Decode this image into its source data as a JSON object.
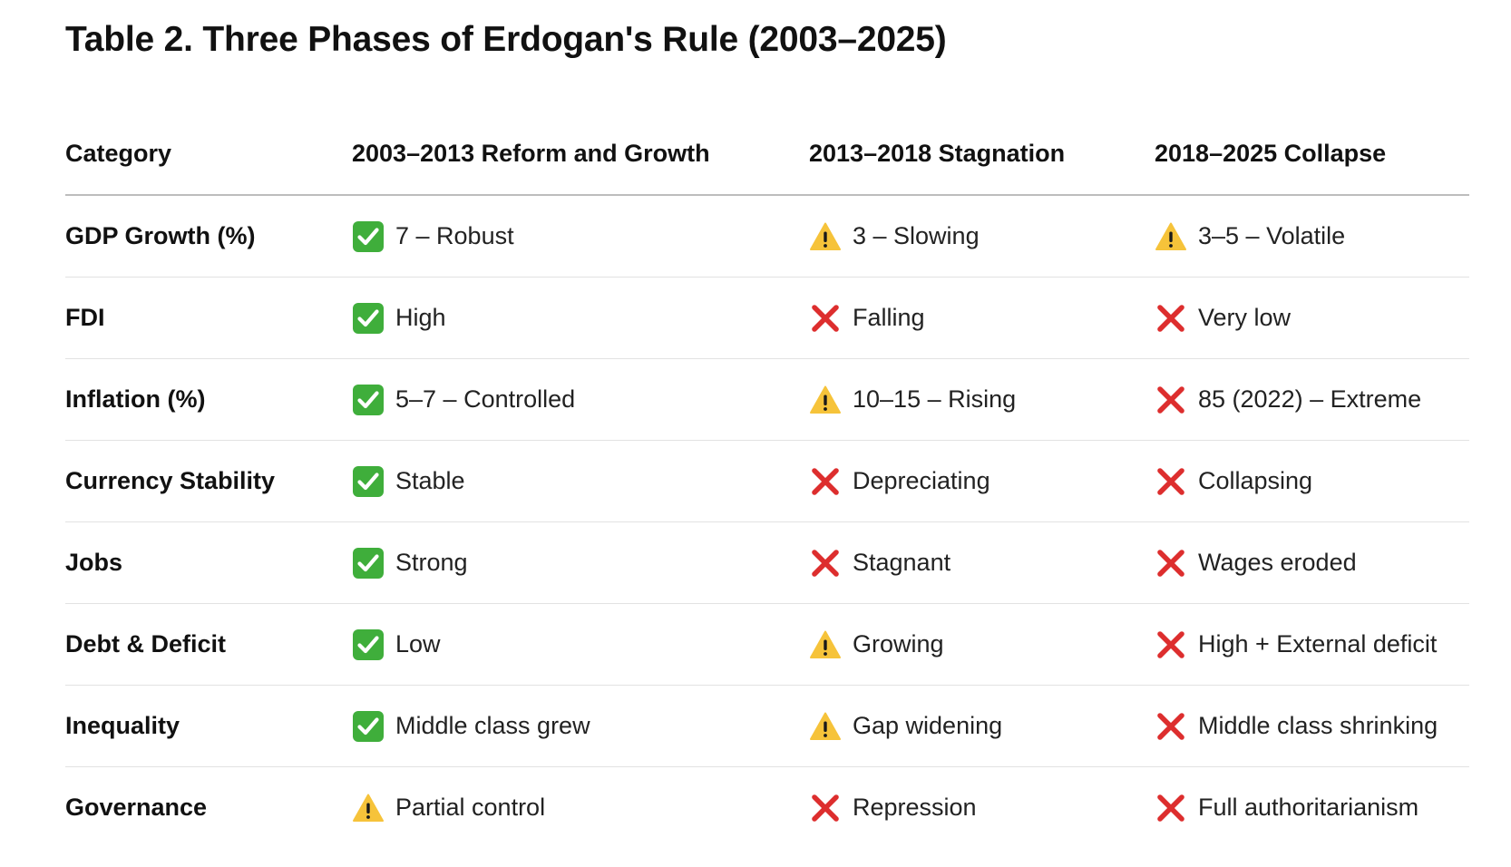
{
  "title": "Table 2. Three Phases of Erdogan's Rule (2003–2025)",
  "columns": [
    "Category",
    "2003–2013 Reform and Growth",
    "2013–2018 Stagnation",
    "2018–2025 Collapse"
  ],
  "icon_names": {
    "check": "check-mark-icon",
    "warn": "warning-icon",
    "cross": "cross-mark-icon"
  },
  "icon_colors": {
    "check_bg": "#3fae3b",
    "warn_fill": "#f6c33a",
    "cross": "#dd2e2e"
  },
  "rows": [
    {
      "label": "GDP Growth (%)",
      "cells": [
        {
          "icon": "check",
          "text": "7 – Robust"
        },
        {
          "icon": "warn",
          "text": "3 – Slowing"
        },
        {
          "icon": "warn",
          "text": "3–5 – Volatile"
        }
      ]
    },
    {
      "label": "FDI",
      "cells": [
        {
          "icon": "check",
          "text": "High"
        },
        {
          "icon": "cross",
          "text": "Falling"
        },
        {
          "icon": "cross",
          "text": "Very low"
        }
      ]
    },
    {
      "label": "Inflation (%)",
      "cells": [
        {
          "icon": "check",
          "text": "5–7 – Controlled"
        },
        {
          "icon": "warn",
          "text": "10–15 – Rising"
        },
        {
          "icon": "cross",
          "text": "85 (2022) – Extreme"
        }
      ]
    },
    {
      "label": "Currency Stability",
      "cells": [
        {
          "icon": "check",
          "text": "Stable"
        },
        {
          "icon": "cross",
          "text": "Depreciating"
        },
        {
          "icon": "cross",
          "text": "Collapsing"
        }
      ]
    },
    {
      "label": "Jobs",
      "cells": [
        {
          "icon": "check",
          "text": "Strong"
        },
        {
          "icon": "cross",
          "text": "Stagnant"
        },
        {
          "icon": "cross",
          "text": "Wages eroded"
        }
      ]
    },
    {
      "label": "Debt & Deficit",
      "cells": [
        {
          "icon": "check",
          "text": "Low"
        },
        {
          "icon": "warn",
          "text": "Growing"
        },
        {
          "icon": "cross",
          "text": "High + External deficit"
        }
      ]
    },
    {
      "label": "Inequality",
      "cells": [
        {
          "icon": "check",
          "text": "Middle class grew"
        },
        {
          "icon": "warn",
          "text": "Gap widening"
        },
        {
          "icon": "cross",
          "text": "Middle class shrinking"
        }
      ]
    },
    {
      "label": "Governance",
      "cells": [
        {
          "icon": "warn",
          "text": "Partial control"
        },
        {
          "icon": "cross",
          "text": "Repression"
        },
        {
          "icon": "cross",
          "text": "Full authoritarianism"
        }
      ]
    }
  ]
}
